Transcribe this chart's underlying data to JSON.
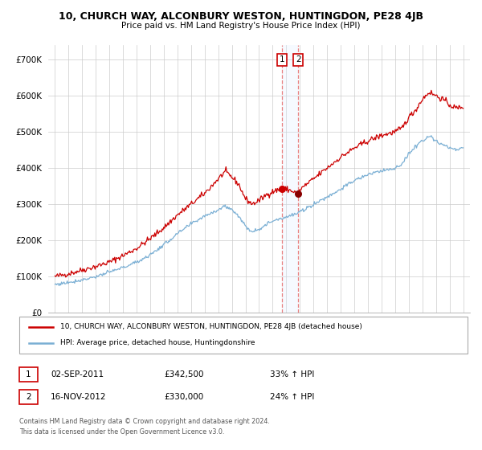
{
  "title": "10, CHURCH WAY, ALCONBURY WESTON, HUNTINGDON, PE28 4JB",
  "subtitle": "Price paid vs. HM Land Registry's House Price Index (HPI)",
  "ytick_vals": [
    0,
    100000,
    200000,
    300000,
    400000,
    500000,
    600000,
    700000
  ],
  "ylim": [
    0,
    740000
  ],
  "xlim_start": 1994.5,
  "xlim_end": 2025.5,
  "red_line_color": "#cc0000",
  "blue_line_color": "#7aafd4",
  "point1_x": 2011.67,
  "point1_y": 342500,
  "point2_x": 2012.88,
  "point2_y": 330000,
  "point1_label": "1",
  "point2_label": "2",
  "legend_line1": "10, CHURCH WAY, ALCONBURY WESTON, HUNTINGDON, PE28 4JB (detached house)",
  "legend_line2": "HPI: Average price, detached house, Huntingdonshire",
  "table_row1": [
    "1",
    "02-SEP-2011",
    "£342,500",
    "33% ↑ HPI"
  ],
  "table_row2": [
    "2",
    "16-NOV-2012",
    "£330,000",
    "24% ↑ HPI"
  ],
  "footnote1": "Contains HM Land Registry data © Crown copyright and database right 2024.",
  "footnote2": "This data is licensed under the Open Government Licence v3.0.",
  "grid_color": "#cccccc",
  "vline_color": "#e88080",
  "span_color": "#ddeeff"
}
